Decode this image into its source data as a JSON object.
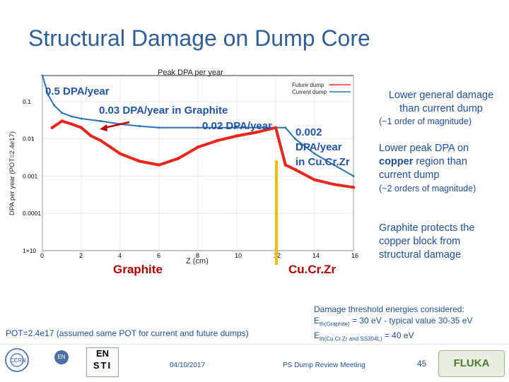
{
  "slide": {
    "title": "Structural Damage on Dump Core"
  },
  "chart_data": {
    "type": "line",
    "title": "Peak DPA per year",
    "xlabel": "Z (cm)",
    "ylabel": "DPA per year (POT=2.4e17)",
    "xlim": [
      0,
      16
    ],
    "ylim": [
      1e-05,
      0.5
    ],
    "y_scale": "log",
    "x_ticks": [
      "0",
      "2",
      "4",
      "6",
      "8",
      "10",
      "12",
      "14",
      "16"
    ],
    "y_ticks": [
      "0.1",
      "0.01",
      "0.001",
      "0.0001",
      "1×10"
    ],
    "legend": [
      "Future dump",
      "Current dump"
    ],
    "legend_position": "top-right",
    "colors": {
      "future": "#e8261d",
      "current": "#2a72b5",
      "boundary": "#f0c000"
    },
    "series": [
      {
        "name": "Future dump",
        "x": [
          0.5,
          1,
          1.5,
          2,
          2.5,
          3,
          3.5,
          4,
          5,
          6,
          7,
          8,
          9,
          10,
          11,
          12,
          12.5,
          13,
          14,
          15,
          16
        ],
        "y": [
          0.02,
          0.03,
          0.025,
          0.02,
          0.012,
          0.009,
          0.006,
          0.004,
          0.0025,
          0.002,
          0.003,
          0.006,
          0.009,
          0.012,
          0.015,
          0.02,
          0.002,
          0.0015,
          0.0008,
          0.0006,
          0.0005
        ]
      },
      {
        "name": "Current dump",
        "x": [
          0,
          0.3,
          0.6,
          1,
          1.5,
          2,
          3,
          4,
          5,
          6,
          8,
          10,
          12,
          12.5,
          13,
          14,
          15,
          16
        ],
        "y": [
          0.5,
          0.15,
          0.08,
          0.05,
          0.04,
          0.035,
          0.03,
          0.025,
          0.022,
          0.02,
          0.02,
          0.02,
          0.02,
          0.02,
          0.01,
          0.004,
          0.002,
          0.001
        ]
      }
    ],
    "annotations": [
      "0.5 DPA/year",
      "0.03 DPA/year in Graphite",
      "0.02 DPA/year",
      "0.002 DPA/year in Cu.Cr.Zr"
    ]
  },
  "labels": {
    "graphite": "Graphite",
    "cucrzr": "Cu.Cr.Zr",
    "a1": "0.5 DPA/year",
    "a2": "0.03 DPA/year in Graphite",
    "a3": "0.02 DPA/year",
    "a4_1": "0.002",
    "a4_2": "DPA/year",
    "a4_3": "in Cu.Cr.Zr"
  },
  "side": {
    "p1_1": "Lower general damage",
    "p1_2": "than current dump",
    "p1_note": "(~1 order of magnitude)",
    "p2_1": "Lower peak DPA on",
    "p2_2a": "copper",
    "p2_2b": " region than",
    "p2_3": "current dump",
    "p2_note": "(~2 orders of magnitude)",
    "p3_1": "Graphite protects the",
    "p3_2": "copper block from",
    "p3_3": "structural damage"
  },
  "threshold": {
    "line1": "Damage threshold energies considered:",
    "line2a": "E",
    "line2sub": "th(Graphite)",
    "line2b": " = 30 eV -  typical value 30-35 eV",
    "line3a": "E",
    "line3sub": "th(Cu.Cr.Zr and SS304L)",
    "line3b": " = 40 eV"
  },
  "pot_note": "POT=2.4e17 (assumed same POT for current and future dumps)",
  "footer": {
    "date": "04/10/2017",
    "meeting": "PS Dump Review Meeting",
    "page": "45",
    "logo_cern": "CERN",
    "logo_en": "EN",
    "logo_ensti_top": "EN",
    "logo_ensti_bottom": "STI",
    "logo_fluka": "FLUKA"
  }
}
